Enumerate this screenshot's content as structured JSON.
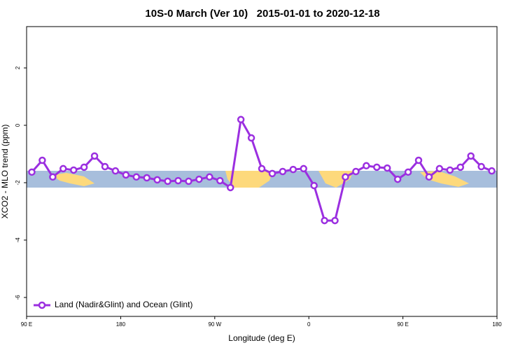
{
  "chart_data": {
    "type": "line",
    "title": "10S-0 March (Ver 10)   2015-01-01 to 2020-12-18",
    "x_label": "Longitude (deg E)",
    "y_label": "XCO2 - MLO trend (ppm)",
    "x": [
      95,
      105,
      115,
      125,
      135,
      145,
      155,
      165,
      175,
      185,
      195,
      205,
      215,
      225,
      235,
      245,
      255,
      265,
      275,
      285,
      295,
      305,
      315,
      325,
      335,
      345,
      355,
      365,
      375,
      385,
      395,
      405,
      415,
      425,
      435,
      445,
      455,
      465,
      475,
      485,
      495,
      505,
      515,
      525,
      535
    ],
    "series": [
      {
        "name": "Land (Nadir&Glint) and Ocean (Glint)",
        "color": "#9b2fe0",
        "values": [
          -1.63,
          -1.22,
          -1.8,
          -1.51,
          -1.56,
          -1.46,
          -1.07,
          -1.44,
          -1.59,
          -1.73,
          -1.8,
          -1.83,
          -1.9,
          -1.95,
          -1.93,
          -1.95,
          -1.88,
          -1.8,
          -1.93,
          -2.17,
          0.2,
          -0.44,
          -1.51,
          -1.68,
          -1.61,
          -1.54,
          -1.51,
          -2.1,
          -3.32,
          -3.32,
          -1.8,
          -1.61,
          -1.41,
          -1.46,
          -1.49,
          -1.88,
          -1.63,
          -1.22,
          -1.8,
          -1.51,
          -1.56,
          -1.46,
          -1.07,
          -1.44,
          -1.59
        ]
      }
    ],
    "xlim": [
      90,
      540
    ],
    "xticks": [
      {
        "value": 90,
        "label": "90 E"
      },
      180,
      {
        "value": 270,
        "label": "90 W"
      },
      {
        "value": 360,
        "label": "0"
      },
      {
        "value": 450,
        "label": "90 E"
      },
      {
        "value": 540,
        "label": "180"
      }
    ],
    "ylim": [
      -6.66,
      3.44
    ],
    "yticks": [
      -6,
      -4,
      -2,
      0,
      2
    ],
    "legend": "bottom-left"
  }
}
